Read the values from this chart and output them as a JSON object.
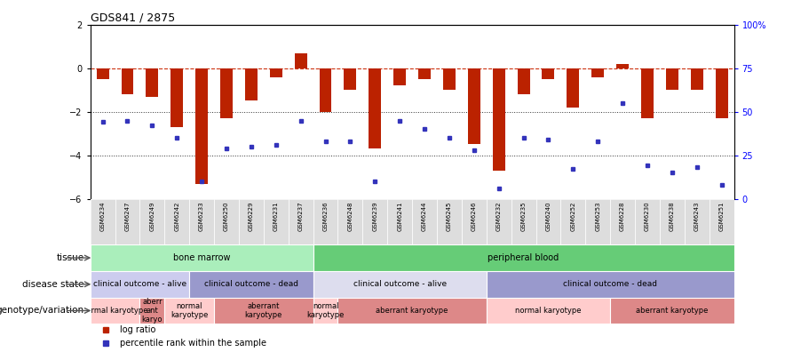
{
  "title": "GDS841 / 2875",
  "samples": [
    "GSM6234",
    "GSM6247",
    "GSM6249",
    "GSM6242",
    "GSM6233",
    "GSM6250",
    "GSM6229",
    "GSM6231",
    "GSM6237",
    "GSM6236",
    "GSM6248",
    "GSM6239",
    "GSM6241",
    "GSM6244",
    "GSM6245",
    "GSM6246",
    "GSM6232",
    "GSM6235",
    "GSM6240",
    "GSM6252",
    "GSM6253",
    "GSM6228",
    "GSM6230",
    "GSM6238",
    "GSM6243",
    "GSM6251"
  ],
  "log_ratio": [
    -0.5,
    -1.2,
    -1.3,
    -2.7,
    -5.3,
    -2.3,
    -1.5,
    -0.4,
    0.7,
    -2.0,
    -1.0,
    -3.7,
    -0.8,
    -0.5,
    -1.0,
    -3.5,
    -4.7,
    -1.2,
    -0.5,
    -1.8,
    -0.4,
    0.2,
    -2.3,
    -1.0,
    -1.0,
    -2.3
  ],
  "percentile": [
    44,
    45,
    42,
    35,
    10,
    29,
    30,
    31,
    45,
    33,
    33,
    10,
    45,
    40,
    35,
    28,
    6,
    35,
    34,
    17,
    33,
    55,
    19,
    15,
    18,
    8
  ],
  "ylim_left": [
    -6,
    2
  ],
  "ylim_right": [
    0,
    100
  ],
  "yticks_left": [
    -6,
    -4,
    -2,
    0,
    2
  ],
  "yticks_right": [
    0,
    25,
    50,
    75,
    100
  ],
  "ytick_labels_right": [
    "0",
    "25",
    "50",
    "75",
    "100%"
  ],
  "bar_color": "#bb2200",
  "dot_color": "#3333bb",
  "dashed_line_color": "#cc3311",
  "dotted_line_color": "#333333",
  "bg_color": "#ffffff",
  "tissue_groups": [
    {
      "label": "bone marrow",
      "start": 0,
      "end": 9,
      "color": "#aaeebb"
    },
    {
      "label": "peripheral blood",
      "start": 9,
      "end": 26,
      "color": "#66cc77"
    }
  ],
  "disease_groups": [
    {
      "label": "clinical outcome - alive",
      "start": 0,
      "end": 4,
      "color": "#ccccee"
    },
    {
      "label": "clinical outcome - dead",
      "start": 4,
      "end": 9,
      "color": "#9999cc"
    },
    {
      "label": "clinical outcome - alive",
      "start": 9,
      "end": 16,
      "color": "#ddddee"
    },
    {
      "label": "clinical outcome - dead",
      "start": 16,
      "end": 26,
      "color": "#9999cc"
    }
  ],
  "genotype_groups": [
    {
      "label": "normal karyotype",
      "start": 0,
      "end": 2,
      "color": "#ffcccc"
    },
    {
      "label": "aberr\nant\nkaryo",
      "start": 2,
      "end": 3,
      "color": "#dd8888"
    },
    {
      "label": "normal\nkaryotype",
      "start": 3,
      "end": 5,
      "color": "#ffcccc"
    },
    {
      "label": "aberrant\nkaryotype",
      "start": 5,
      "end": 9,
      "color": "#dd8888"
    },
    {
      "label": "normal\nkaryotype",
      "start": 9,
      "end": 10,
      "color": "#ffcccc"
    },
    {
      "label": "aberrant karyotype",
      "start": 10,
      "end": 16,
      "color": "#dd8888"
    },
    {
      "label": "normal karyotype",
      "start": 16,
      "end": 21,
      "color": "#ffcccc"
    },
    {
      "label": "aberrant karyotype",
      "start": 21,
      "end": 26,
      "color": "#dd8888"
    }
  ],
  "row_labels": [
    "tissue",
    "disease state",
    "genotype/variation"
  ],
  "legend_items": [
    {
      "color": "#bb2200",
      "label": "log ratio"
    },
    {
      "color": "#3333bb",
      "label": "percentile rank within the sample"
    }
  ]
}
